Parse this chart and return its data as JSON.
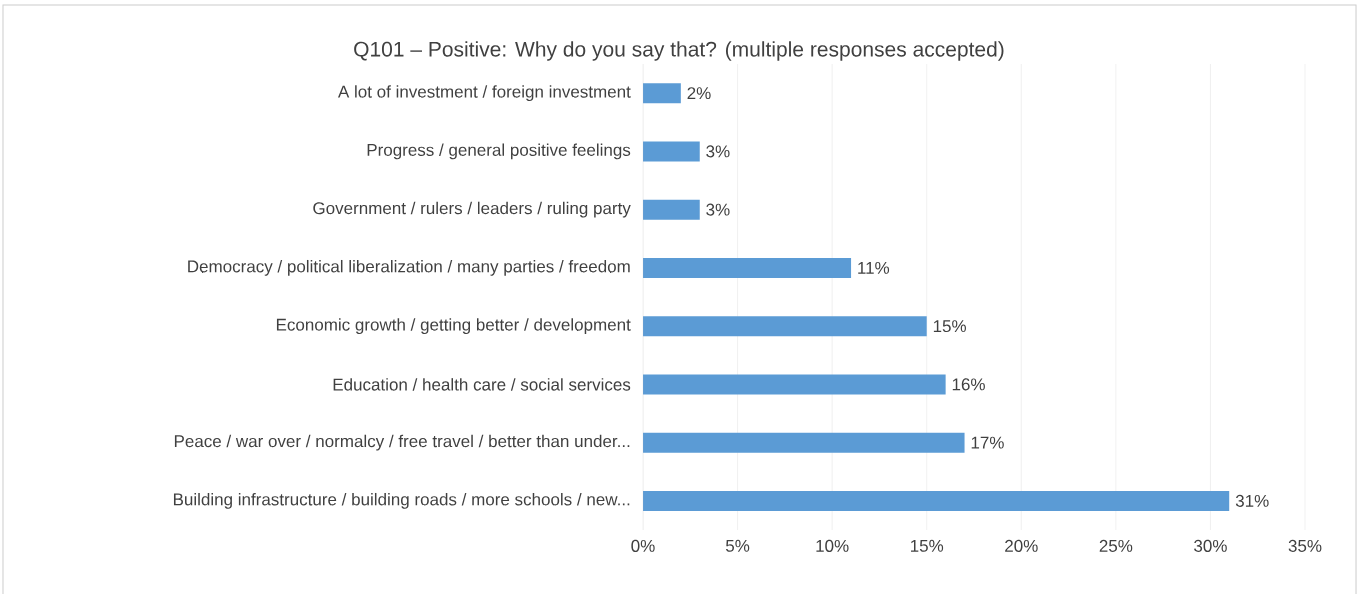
{
  "chart_data": {
    "type": "bar",
    "orientation": "horizontal",
    "title": "Q101 – Positive: Why do you say that? (multiple responses accepted)",
    "categories": [
      "A lot of investment / foreign investment",
      "Progress / general positive feelings",
      "Government / rulers / leaders / ruling party",
      "Democracy / political liberalization / many parties / freedom",
      "Economic growth / getting better / development",
      "Education / health care / social services",
      "Peace / war over / normalcy / free travel / better than under...",
      "Building infrastructure / building roads / more schools /  new..."
    ],
    "values": [
      2,
      3,
      3,
      11,
      15,
      16,
      17,
      31
    ],
    "value_labels": [
      "2%",
      "3%",
      "3%",
      "11%",
      "15%",
      "16%",
      "17%",
      "31%"
    ],
    "color": "#5b9bd5",
    "xlim": [
      0,
      35
    ],
    "xticks": [
      {
        "value": 0,
        "label": "0%"
      },
      {
        "value": 5,
        "label": "5%"
      },
      {
        "value": 10,
        "label": "10%"
      },
      {
        "value": 15,
        "label": "15%"
      },
      {
        "value": 20,
        "label": "20%"
      },
      {
        "value": 25,
        "label": "25%"
      },
      {
        "value": 30,
        "label": "30%"
      },
      {
        "value": 35,
        "label": "35%"
      }
    ],
    "grid": "x"
  }
}
